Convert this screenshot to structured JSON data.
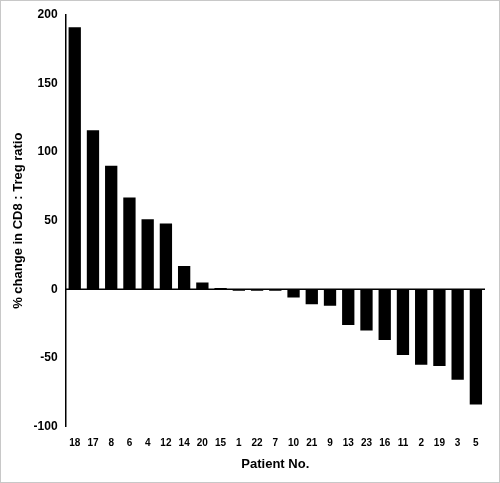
{
  "chart_data": {
    "type": "bar",
    "x_label": "Patient No.",
    "y_label": "% change in CD8 : Treg ratio",
    "categories": [
      "18",
      "17",
      "8",
      "6",
      "4",
      "12",
      "14",
      "20",
      "15",
      "1",
      "22",
      "7",
      "10",
      "21",
      "9",
      "13",
      "23",
      "16",
      "11",
      "2",
      "19",
      "3",
      "5"
    ],
    "values": [
      191,
      116,
      90,
      67,
      51,
      48,
      17,
      5,
      1,
      -1,
      -1,
      -1,
      -6,
      -11,
      -12,
      -26,
      -30,
      -37,
      -48,
      -55,
      -56,
      -66,
      -84
    ],
    "color": "#000000",
    "ylim": [
      -100,
      200
    ],
    "yticks": [
      -100,
      -50,
      0,
      50,
      100,
      150,
      200
    ],
    "grid": false
  }
}
